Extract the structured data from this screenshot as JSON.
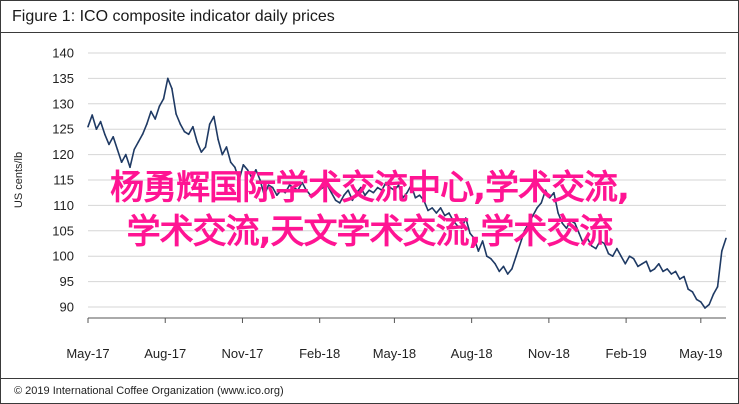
{
  "figure": {
    "title": "Figure 1: ICO composite indicator daily prices",
    "footer": "© 2019 International Coffee Organization (www.ico.org)"
  },
  "overlay": {
    "line1": "杨勇辉国际学术交流中心,学术交流,",
    "line2": "学术交流,天文学术交流,学术交流"
  },
  "colors": {
    "series": "#1f3a64",
    "grid": "#d6d6d6",
    "overlay": "#ff1493"
  },
  "chart_data": {
    "type": "line",
    "title": "Figure 1: ICO composite indicator daily prices",
    "xlabel": "",
    "ylabel": "US cents/lb",
    "ylim": [
      90,
      140
    ],
    "yticks": [
      90,
      95,
      100,
      105,
      110,
      115,
      120,
      125,
      130,
      135,
      140
    ],
    "xlim": [
      "2017-05-01",
      "2019-05-31"
    ],
    "xticks": [
      "May-17",
      "Aug-17",
      "Nov-17",
      "Feb-18",
      "May-18",
      "Aug-18",
      "Nov-18",
      "Feb-19",
      "May-19"
    ],
    "grid": true,
    "legend": "none",
    "series": [
      {
        "x": [
          "2017-05-01",
          "2017-05-06",
          "2017-05-11",
          "2017-05-16",
          "2017-05-21",
          "2017-05-26",
          "2017-05-31",
          "2017-06-05",
          "2017-06-10",
          "2017-06-15",
          "2017-06-20",
          "2017-06-25",
          "2017-06-30",
          "2017-07-05",
          "2017-07-10",
          "2017-07-15",
          "2017-07-20",
          "2017-07-25",
          "2017-07-30",
          "2017-08-04",
          "2017-08-09",
          "2017-08-14",
          "2017-08-19",
          "2017-08-24",
          "2017-08-29",
          "2017-09-03",
          "2017-09-08",
          "2017-09-13",
          "2017-09-18",
          "2017-09-23",
          "2017-09-28",
          "2017-10-03",
          "2017-10-08",
          "2017-10-13",
          "2017-10-18",
          "2017-10-23",
          "2017-10-28",
          "2017-11-02",
          "2017-11-07",
          "2017-11-12",
          "2017-11-17",
          "2017-11-22",
          "2017-11-27",
          "2017-12-02",
          "2017-12-07",
          "2017-12-12",
          "2017-12-17",
          "2017-12-22",
          "2017-12-27",
          "2018-01-01",
          "2018-01-06",
          "2018-01-11",
          "2018-01-16",
          "2018-01-21",
          "2018-01-26",
          "2018-01-31",
          "2018-02-05",
          "2018-02-10",
          "2018-02-15",
          "2018-02-20",
          "2018-02-25",
          "2018-03-02",
          "2018-03-07",
          "2018-03-12",
          "2018-03-17",
          "2018-03-22",
          "2018-03-27",
          "2018-04-01",
          "2018-04-06",
          "2018-04-11",
          "2018-04-16",
          "2018-04-21",
          "2018-04-26",
          "2018-05-01",
          "2018-05-06",
          "2018-05-11",
          "2018-05-16",
          "2018-05-21",
          "2018-05-26",
          "2018-05-31",
          "2018-06-05",
          "2018-06-10",
          "2018-06-15",
          "2018-06-20",
          "2018-06-25",
          "2018-06-30",
          "2018-07-05",
          "2018-07-10",
          "2018-07-15",
          "2018-07-20",
          "2018-07-25",
          "2018-07-30",
          "2018-08-04",
          "2018-08-09",
          "2018-08-14",
          "2018-08-19",
          "2018-08-24",
          "2018-08-29",
          "2018-09-03",
          "2018-09-08",
          "2018-09-13",
          "2018-09-18",
          "2018-09-23",
          "2018-09-28",
          "2018-10-03",
          "2018-10-08",
          "2018-10-13",
          "2018-10-18",
          "2018-10-23",
          "2018-10-28",
          "2018-11-02",
          "2018-11-07",
          "2018-11-12",
          "2018-11-17",
          "2018-11-22",
          "2018-11-27",
          "2018-12-02",
          "2018-12-07",
          "2018-12-12",
          "2018-12-17",
          "2018-12-22",
          "2018-12-27",
          "2019-01-01",
          "2019-01-06",
          "2019-01-11",
          "2019-01-16",
          "2019-01-21",
          "2019-01-26",
          "2019-01-31",
          "2019-02-05",
          "2019-02-10",
          "2019-02-15",
          "2019-02-20",
          "2019-02-25",
          "2019-03-02",
          "2019-03-07",
          "2019-03-12",
          "2019-03-17",
          "2019-03-22",
          "2019-03-27",
          "2019-04-01",
          "2019-04-06",
          "2019-04-11",
          "2019-04-16",
          "2019-04-21",
          "2019-04-26",
          "2019-05-01",
          "2019-05-06",
          "2019-05-11",
          "2019-05-16",
          "2019-05-21",
          "2019-05-26",
          "2019-05-31"
        ],
        "values": [
          125.5,
          127.8,
          125.0,
          126.5,
          124.0,
          122.0,
          123.5,
          121.0,
          118.5,
          120.0,
          117.5,
          121.0,
          122.5,
          124.0,
          126.0,
          128.5,
          127.0,
          129.5,
          131.0,
          135.0,
          133.0,
          128.0,
          126.0,
          124.5,
          124.0,
          125.5,
          122.5,
          120.5,
          121.5,
          126.0,
          127.5,
          123.0,
          120.0,
          121.5,
          118.5,
          117.5,
          115.0,
          118.0,
          117.0,
          115.5,
          117.0,
          115.0,
          112.0,
          114.0,
          113.5,
          112.0,
          113.0,
          112.5,
          114.0,
          113.5,
          113.0,
          114.5,
          113.0,
          112.0,
          112.5,
          113.0,
          113.5,
          114.0,
          112.5,
          111.0,
          110.5,
          112.0,
          113.0,
          111.0,
          112.5,
          113.5,
          112.0,
          113.0,
          112.5,
          113.5,
          113.0,
          114.5,
          113.5,
          113.0,
          114.0,
          111.5,
          112.5,
          114.0,
          111.5,
          112.0,
          111.0,
          109.0,
          109.5,
          108.5,
          109.5,
          108.0,
          108.5,
          107.0,
          106.0,
          105.5,
          107.5,
          104.5,
          103.5,
          101.0,
          103.0,
          100.0,
          99.5,
          98.5,
          97.0,
          98.0,
          96.5,
          97.5,
          100.0,
          102.5,
          105.0,
          106.5,
          108.0,
          109.5,
          110.5,
          113.0,
          111.5,
          112.5,
          108.5,
          106.5,
          105.5,
          107.0,
          106.5,
          104.5,
          102.5,
          103.5,
          102.0,
          101.5,
          103.0,
          102.5,
          100.5,
          100.0,
          101.5,
          100.0,
          98.5,
          100.0,
          99.5,
          98.0,
          98.5,
          99.0,
          97.0,
          97.5,
          98.5,
          97.0,
          97.5,
          96.5,
          97.0,
          95.5,
          96.0,
          93.5,
          93.0,
          91.5,
          91.0,
          89.8,
          90.5,
          92.5,
          94.0,
          101.0,
          103.5
        ]
      }
    ]
  }
}
